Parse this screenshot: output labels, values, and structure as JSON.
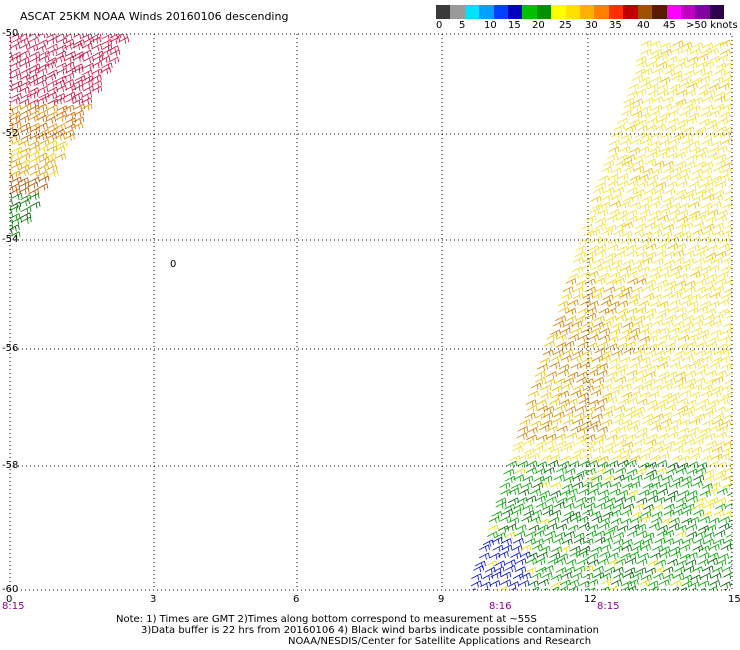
{
  "title": "ASCAT 25KM NOAA Winds 20160106 descending",
  "legend": {
    "colors": [
      "#3a3a3a",
      "#9a9a9a",
      "#00e0ff",
      "#00a0ff",
      "#0040ff",
      "#0000c0",
      "#00c000",
      "#009000",
      "#ffff00",
      "#ffe000",
      "#ffb000",
      "#ff8000",
      "#ff3000",
      "#c00000",
      "#a05000",
      "#5a1a00",
      "#ff00ff",
      "#c000c0",
      "#8000a0",
      "#300050"
    ],
    "labels": [
      "0",
      "5",
      "10",
      "15",
      "20",
      "25",
      "30",
      "35",
      "40",
      "45",
      ">50 knots"
    ]
  },
  "lat_labels": [
    "-50",
    "-52",
    "-54",
    "-56",
    "-58",
    "-60"
  ],
  "lon_labels": [
    "0",
    "3",
    "6",
    "9",
    "12",
    "15"
  ],
  "time_labels": [
    "8:15",
    "8:16",
    "8:15"
  ],
  "notes": [
    "Note: 1) Times are GMT 2)Times along bottom correspond to measurement at ~55S",
    "3)Data buffer is 22 hrs from 20160106 4) Black wind barbs indicate possible contamination",
    "NOAA/NESDIS/Center for Satellite Applications and Research"
  ],
  "map_marker": "0"
}
